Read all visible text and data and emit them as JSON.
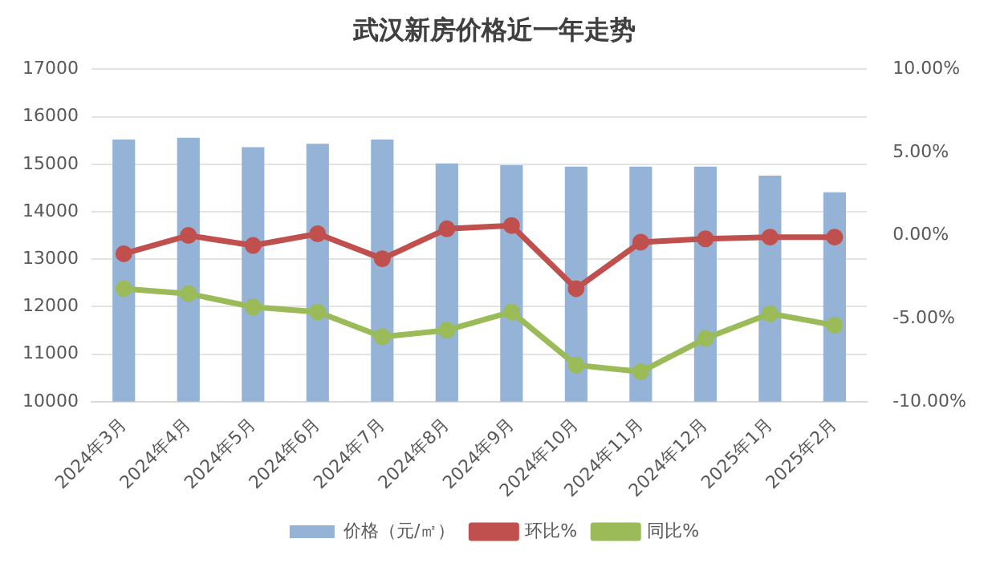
{
  "chart_data": {
    "type": "bar",
    "title": "武汉新房价格近一年走势",
    "categories": [
      "2024年3月",
      "2024年4月",
      "2024年5月",
      "2024年6月",
      "2024年7月",
      "2024年8月",
      "2024年9月",
      "2024年10月",
      "2024年11月",
      "2024年12月",
      "2025年1月",
      "2025年2月"
    ],
    "series": [
      {
        "name": "价格（元/㎡）",
        "color": "#95b3d7",
        "values": [
          15520,
          15560,
          15360,
          15430,
          15520,
          15020,
          14980,
          14950,
          14950,
          14950,
          14760,
          14410
        ]
      },
      {
        "name": "环比%",
        "type": "line",
        "axis": "y2",
        "color": "#c0504d",
        "values": [
          -1.1,
          0.0,
          -0.6,
          0.1,
          -1.4,
          0.4,
          0.6,
          -3.2,
          -0.4,
          -0.2,
          -0.1,
          -0.1
        ]
      },
      {
        "name": "同比%",
        "type": "line",
        "axis": "y2",
        "color": "#9bbb59",
        "values": [
          -3.2,
          -3.5,
          -4.3,
          -4.6,
          -6.1,
          -5.7,
          -4.6,
          -7.8,
          -8.2,
          -6.2,
          -4.7,
          -5.4
        ]
      }
    ],
    "ylim": [
      10000,
      17000
    ],
    "yticks": [
      10000,
      11000,
      12000,
      13000,
      14000,
      15000,
      16000,
      17000
    ],
    "y2lim": [
      -10,
      10
    ],
    "y2ticks": [
      {
        "value": -10,
        "label": "-10.00%"
      },
      {
        "value": -5,
        "label": "-5.00%"
      },
      {
        "value": 0,
        "label": "0.00%"
      },
      {
        "value": 5,
        "label": "5.00%"
      },
      {
        "value": 10,
        "label": "10.00%"
      }
    ],
    "grid": "y",
    "legend": "bottom",
    "marker": "circle",
    "line_style": "solid"
  }
}
